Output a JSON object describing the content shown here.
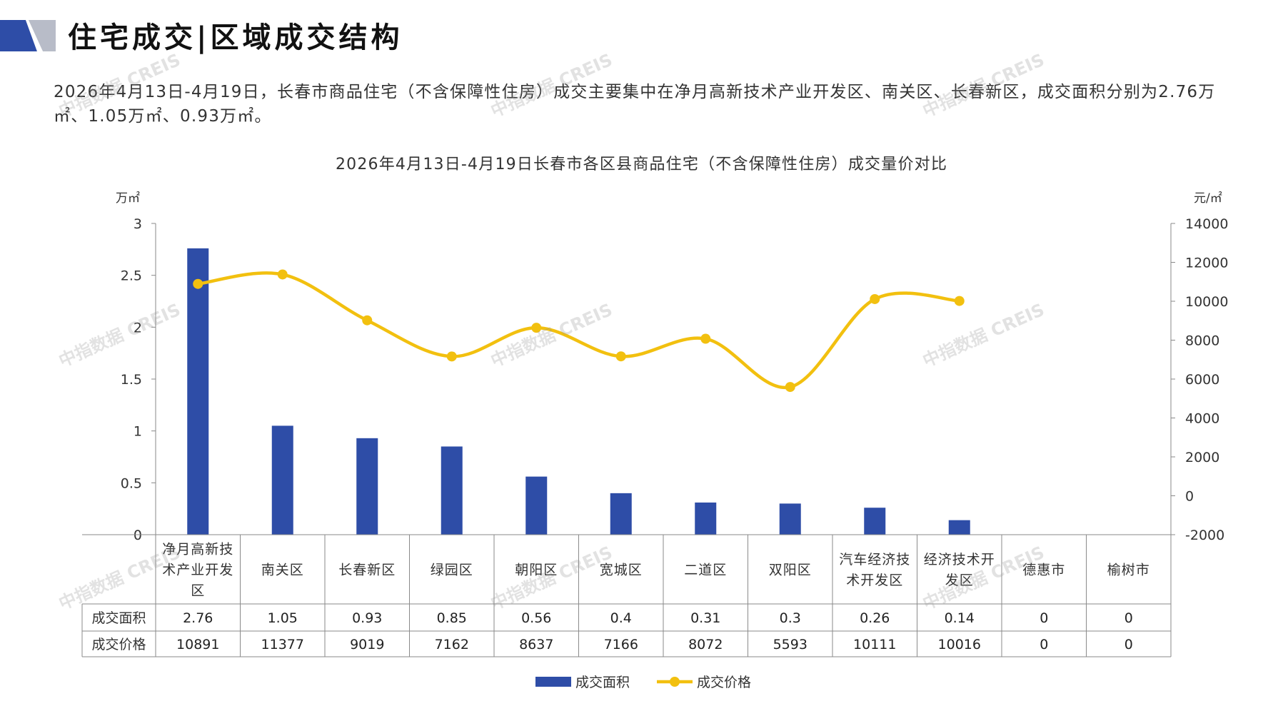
{
  "header": {
    "title": "住宅成交|区域成交结构"
  },
  "summary": {
    "text": "2026年4月13日-4月19日，长春市商品住宅（不含保障性住房）成交主要集中在净月高新技术产业开发区、南关区、长春新区，成交面积分别为2.76万㎡、1.05万㎡、0.93万㎡。"
  },
  "watermark": {
    "text": "中指数据 CREIS"
  },
  "colors": {
    "bar": "#2E4DA7",
    "line": "#F2C00F",
    "logo_blue": "#2E4DA7",
    "logo_gray": "#B8BCC8"
  },
  "chart_data": {
    "type": "bar+line",
    "title": "2026年4月13日-4月19日长春市各区县商品住宅（不含保障性住房）成交量价对比",
    "y_left_unit": "万㎡",
    "y_right_unit": "元/㎡",
    "y_left_ticks": [
      "0",
      "0.5",
      "1",
      "1.5",
      "2",
      "2.5",
      "3"
    ],
    "y_right_ticks": [
      "-2000",
      "0",
      "2000",
      "4000",
      "6000",
      "8000",
      "10000",
      "12000",
      "14000"
    ],
    "ylim_left": [
      0,
      3
    ],
    "ylim_right": [
      -2000,
      14000
    ],
    "categories": [
      "净月高新技术产业开发区",
      "南关区",
      "长春新区",
      "绿园区",
      "朝阳区",
      "宽城区",
      "二道区",
      "双阳区",
      "汽车经济技术开发区",
      "经济技术开发区",
      "德惠市",
      "榆树市"
    ],
    "series": [
      {
        "name": "成交面积",
        "type": "bar",
        "axis": "left",
        "values": [
          2.76,
          1.05,
          0.93,
          0.85,
          0.56,
          0.4,
          0.31,
          0.3,
          0.26,
          0.14,
          0,
          0
        ],
        "labels": [
          "2.76",
          "1.05",
          "0.93",
          "0.85",
          "0.56",
          "0.4",
          "0.31",
          "0.3",
          "0.26",
          "0.14",
          "0",
          "0"
        ]
      },
      {
        "name": "成交价格",
        "type": "line",
        "axis": "right",
        "values": [
          10891,
          11377,
          9019,
          7162,
          8637,
          7166,
          8072,
          5593,
          10111,
          10016,
          0,
          0
        ],
        "labels": [
          "10891",
          "11377",
          "9019",
          "7162",
          "8637",
          "7166",
          "8072",
          "5593",
          "10111",
          "10016",
          "0",
          "0"
        ],
        "plotted_points": 10
      }
    ],
    "legend": {
      "placement": "bottom-center",
      "items": [
        "成交面积",
        "成交价格"
      ]
    },
    "table_below": true
  }
}
